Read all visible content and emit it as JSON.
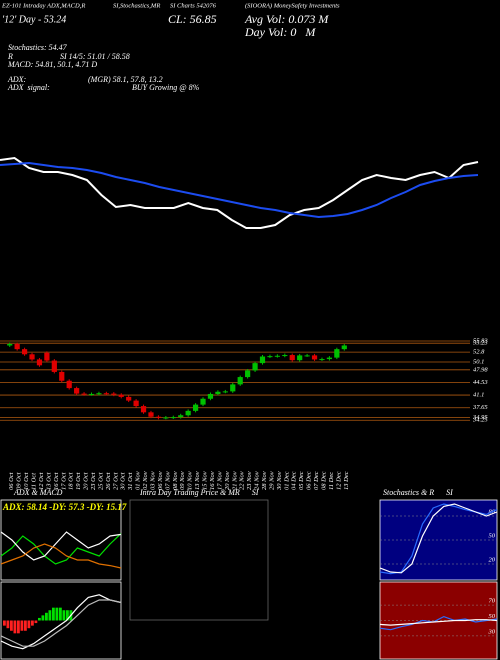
{
  "header": {
    "lines": [
      "EZ-101 Intraday ADX,MACD,R",
      "SI,Stochastics,MR",
      "SI Charts 542076",
      "(SIOORA) MoneySafety Investments",
      "'12' Day - 53.24",
      "CL: 56.85",
      "Avg Vol: 0.073 M",
      "Day Vol: 0   M",
      "Stochastics: 54.47",
      "R",
      "SI 14/5: 51.01 / 58.58",
      "MACD: 54.81, 50.1, 4.71 D",
      "ADX:",
      "(MGR) 58.1, 57.8, 13.2",
      "ADX  signal:",
      "BUY Growing @ 8%"
    ]
  },
  "chart_data": [
    {
      "type": "line",
      "ylim": [
        0,
        100
      ],
      "series": [
        {
          "color": "#ffffff",
          "values": [
            80,
            82,
            72,
            68,
            68,
            65,
            60,
            45,
            33,
            35,
            32,
            32,
            32,
            37,
            32,
            30,
            20,
            12,
            12,
            15,
            25,
            30,
            32,
            40,
            50,
            60,
            65,
            62,
            60,
            65,
            68,
            62,
            75,
            78
          ]
        },
        {
          "color": "#1c4cf0",
          "values": [
            75,
            76,
            77,
            75,
            73,
            72,
            70,
            67,
            63,
            60,
            57,
            53,
            50,
            47,
            44,
            41,
            38,
            35,
            32,
            30,
            27,
            25,
            23,
            24,
            26,
            30,
            35,
            42,
            48,
            55,
            59,
            62,
            64,
            65
          ]
        }
      ]
    },
    {
      "type": "candlestick",
      "ylim": [
        30.5,
        58
      ],
      "yticks": [
        55.83,
        55.23,
        52.8,
        50.1,
        47.98,
        44.53,
        41.1,
        37.65,
        34.95,
        34.25
      ],
      "up_color": "#00c000",
      "down_color": "#e00000",
      "level_color": "#b05a10",
      "categories": [
        "06 Oct",
        "09 Oct",
        "10 Oct",
        "11 Oct",
        "12 Oct",
        "13 Oct",
        "16 Oct",
        "17 Oct",
        "18 Oct",
        "19 Oct",
        "20 Oct",
        "23 Oct",
        "25 Oct",
        "26 Oct",
        "27 Oct",
        "30 Oct",
        "31 Oct",
        "01 Nov",
        "02 Nov",
        "03 Nov",
        "06 Nov",
        "07 Nov",
        "08 Nov",
        "09 Nov",
        "10 Nov",
        "13 Nov",
        "15 Nov",
        "16 Nov",
        "17 Nov",
        "20 Nov",
        "21 Nov",
        "22 Nov",
        "23 Nov",
        "24 Nov",
        "28 Nov",
        "29 Nov",
        "30 Nov",
        "01 Dec",
        "04 Dec",
        "05 Dec",
        "06 Dec",
        "07 Dec",
        "08 Dec",
        "11 Dec",
        "12 Dec",
        "13 Dec"
      ],
      "open": [
        54.6,
        55.0,
        53.6,
        52.2,
        50.8,
        52.6,
        50.5,
        47.4,
        45.0,
        43.0,
        41.5,
        41.3,
        41.4,
        41.6,
        41.5,
        41.2,
        40.6,
        39.6,
        38.1,
        36.4,
        35.2,
        34.9,
        35.0,
        35.1,
        35.6,
        36.8,
        38.5,
        40.1,
        41.4,
        42.0,
        42.1,
        44.0,
        46.0,
        47.8,
        49.8,
        51.6,
        51.7,
        51.8,
        52.0,
        50.6,
        51.9,
        51.9,
        50.8,
        50.9,
        51.3,
        53.6
      ],
      "high": [
        55.4,
        55.4,
        54.0,
        52.6,
        51.2,
        53.0,
        50.9,
        47.8,
        45.4,
        43.4,
        41.9,
        41.8,
        42.0,
        42.0,
        41.9,
        41.6,
        41.0,
        40.0,
        38.5,
        36.8,
        35.6,
        35.4,
        35.5,
        36.0,
        37.2,
        38.9,
        40.5,
        41.8,
        42.4,
        42.5,
        44.4,
        46.4,
        48.2,
        50.2,
        52.0,
        52.1,
        52.2,
        52.4,
        52.4,
        52.3,
        52.3,
        52.3,
        51.3,
        51.7,
        54.0,
        55.0
      ],
      "low": [
        54.2,
        53.2,
        51.8,
        50.4,
        48.8,
        50.1,
        47.0,
        44.6,
        42.6,
        41.1,
        40.9,
        40.9,
        41.0,
        41.1,
        40.8,
        40.2,
        39.2,
        37.7,
        36.0,
        34.8,
        34.5,
        34.5,
        34.6,
        34.7,
        35.2,
        36.4,
        38.1,
        39.7,
        41.0,
        41.6,
        41.7,
        43.6,
        45.6,
        47.4,
        49.4,
        51.2,
        51.3,
        51.4,
        50.2,
        50.2,
        51.5,
        50.4,
        50.4,
        50.5,
        50.9,
        53.2
      ],
      "close": [
        55.0,
        53.6,
        52.2,
        50.8,
        49.2,
        50.5,
        47.4,
        45.0,
        43.0,
        41.5,
        41.3,
        41.4,
        41.6,
        41.5,
        41.2,
        40.6,
        39.6,
        38.1,
        36.4,
        35.2,
        34.9,
        35.0,
        35.1,
        35.6,
        36.8,
        38.5,
        40.1,
        41.4,
        42.0,
        42.1,
        44.0,
        46.0,
        47.8,
        49.8,
        51.6,
        51.7,
        51.8,
        52.0,
        50.6,
        51.9,
        51.9,
        50.8,
        50.9,
        51.3,
        53.6,
        54.6
      ]
    },
    {
      "type": "line",
      "title": "ADX & MACD",
      "annotation": "ADX: 58.14 -DY: 57.3 -DY: 15.17",
      "ylim": [
        0,
        100
      ],
      "series": [
        {
          "color": "#00e000",
          "values": [
            30,
            40,
            55,
            45,
            30,
            20,
            25,
            40,
            35,
            30,
            45,
            58
          ]
        },
        {
          "color": "#ffffff",
          "values": [
            60,
            50,
            35,
            25,
            30,
            45,
            60,
            50,
            40,
            45,
            55,
            57
          ]
        },
        {
          "color": "#e07000",
          "values": [
            20,
            25,
            30,
            40,
            45,
            40,
            30,
            25,
            25,
            20,
            18,
            15
          ]
        }
      ]
    },
    {
      "type": "bar",
      "ylim": [
        -1.5,
        1.5
      ],
      "up_color": "#00e000",
      "down_color": "#ff2020",
      "values": [
        -0.2,
        -0.3,
        -0.4,
        -0.5,
        -0.5,
        -0.4,
        -0.4,
        -0.3,
        -0.2,
        -0.1,
        0.1,
        0.2,
        0.3,
        0.4,
        0.5,
        0.5,
        0.5,
        0.4,
        0.4,
        0.4
      ],
      "series": [
        {
          "color": "#ffffff",
          "values": [
            -0.8,
            -1.0,
            -1.1,
            -0.9,
            -0.6,
            -0.3,
            0.0,
            0.5,
            0.9,
            1.0,
            0.8,
            0.7
          ]
        },
        {
          "color": "#bbbbbb",
          "values": [
            -0.6,
            -0.8,
            -1.0,
            -1.0,
            -0.8,
            -0.5,
            -0.2,
            0.2,
            0.6,
            0.8,
            0.8,
            0.7
          ]
        }
      ]
    },
    {
      "type": "line",
      "title": "Intra Day Trading Price & MR      SI",
      "series": []
    },
    {
      "type": "line",
      "title": "Stochastics & R      SI",
      "background": "#000080",
      "ylim": [
        0,
        100
      ],
      "yticks": [
        20,
        50,
        80
      ],
      "series": [
        {
          "color": "#2a6cff",
          "values": [
            10,
            8,
            10,
            30,
            70,
            90,
            95,
            92,
            88,
            85,
            82,
            88
          ]
        },
        {
          "color": "#ffffff",
          "values": [
            15,
            10,
            9,
            20,
            55,
            80,
            92,
            95,
            90,
            85,
            80,
            85
          ]
        }
      ]
    },
    {
      "type": "line",
      "background": "#8b0000",
      "ylim": [
        0,
        100
      ],
      "yticks": [
        30,
        50,
        70
      ],
      "series": [
        {
          "color": "#2a6cff",
          "values": [
            40,
            38,
            42,
            45,
            50,
            48,
            55,
            50,
            52,
            48,
            50,
            52
          ]
        },
        {
          "color": "#ffffff",
          "values": [
            45,
            44,
            45,
            46,
            47,
            48,
            49,
            50,
            50,
            51,
            51,
            50
          ]
        }
      ]
    }
  ]
}
